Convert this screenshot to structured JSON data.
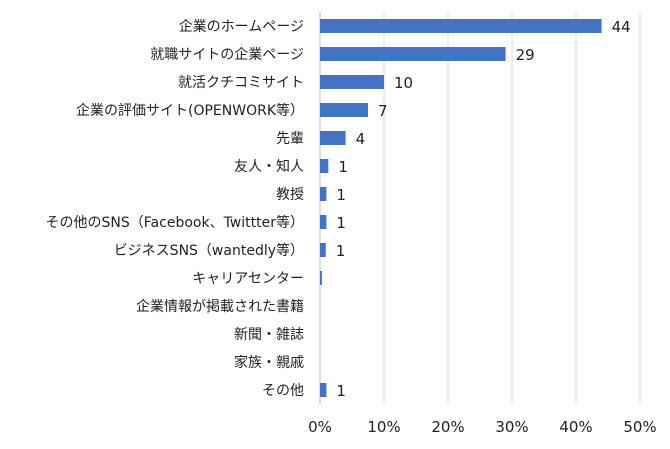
{
  "chart_data": {
    "type": "bar",
    "orientation": "horizontal",
    "title": "",
    "xlabel": "",
    "ylabel": "",
    "categories": [
      "企業のホームページ",
      "就職サイトの企業ページ",
      "就活クチコミサイト",
      "企業の評価サイト(OPENWORK等）",
      "先輩",
      "友人・知人",
      "教授",
      "その他のSNS（Facebook、Twittter等）",
      "ビジネスSNS（wantedly等）",
      "キャリアセンター",
      "企業情報が掲載された書籍",
      "新聞・雑誌",
      "家族・親戚",
      "その他"
    ],
    "values": [
      44,
      29,
      10,
      7,
      4,
      1,
      1,
      1,
      1,
      0.3,
      0,
      0,
      0,
      1
    ],
    "percent_values": [
      44.0,
      29.0,
      10.0,
      7.5,
      4.0,
      1.3,
      1.0,
      1.0,
      0.9,
      0.3,
      0,
      0,
      0,
      1.0
    ],
    "data_labels": [
      "44",
      "29",
      "10",
      "7",
      "4",
      "1",
      "1",
      "1",
      "1",
      "",
      "",
      "",
      "",
      "1"
    ],
    "x_ticks": [
      "0%",
      "10%",
      "20%",
      "30%",
      "40%",
      "50%"
    ],
    "xlim": [
      0,
      50
    ],
    "grid": true,
    "legend": "none",
    "bar_color": "#4472C4",
    "grid_color": "#D9D9D9",
    "axis_color": "#BFBFBF"
  }
}
